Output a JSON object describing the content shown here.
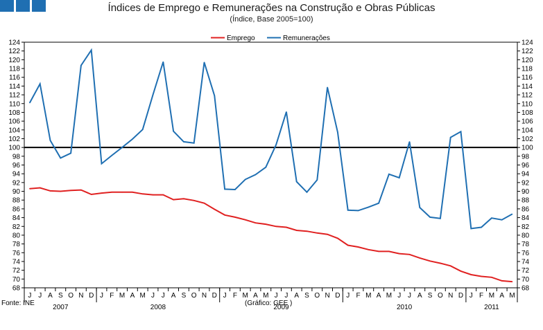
{
  "logo": {
    "color": "#1f6fb2"
  },
  "header": {
    "title": "Índices de Emprego e Remunerações na Construção e Obras Públicas",
    "subtitle": "(Índice, Base 2005=100)"
  },
  "footer": {
    "source": "Fonte: INE",
    "credit": "(Gráfico: GEE )"
  },
  "chart_data": {
    "type": "line",
    "title": "Índices de Emprego e Remunerações na Construção e Obras Públicas",
    "subtitle": "(Índice, Base 2005=100)",
    "ylim": [
      68,
      124
    ],
    "ytick_step": 2,
    "reference_line": 100,
    "grid": false,
    "legend_position": "top-center",
    "months": [
      "J",
      "J",
      "A",
      "S",
      "O",
      "N",
      "D",
      "J",
      "F",
      "M",
      "A",
      "M",
      "J",
      "J",
      "A",
      "S",
      "O",
      "N",
      "D",
      "J",
      "F",
      "M",
      "A",
      "M",
      "J",
      "J",
      "A",
      "S",
      "O",
      "N",
      "D",
      "J",
      "F",
      "M",
      "A",
      "M",
      "J",
      "J",
      "A",
      "S",
      "O",
      "N",
      "D",
      "J",
      "F",
      "M",
      "A",
      "M"
    ],
    "years": [
      {
        "label": "2007",
        "start": 0,
        "count": 7
      },
      {
        "label": "2008",
        "start": 7,
        "count": 12
      },
      {
        "label": "2009",
        "start": 19,
        "count": 12
      },
      {
        "label": "2010",
        "start": 31,
        "count": 12
      },
      {
        "label": "2011",
        "start": 43,
        "count": 5
      }
    ],
    "series": [
      {
        "name": "Emprego",
        "color": "#e02020",
        "values": [
          90.6,
          90.8,
          90.1,
          90.0,
          90.2,
          90.3,
          89.3,
          89.6,
          89.8,
          89.8,
          89.8,
          89.4,
          89.2,
          89.2,
          88.1,
          88.3,
          87.9,
          87.3,
          85.9,
          84.6,
          84.1,
          83.5,
          82.8,
          82.5,
          82.0,
          81.8,
          81.1,
          80.9,
          80.5,
          80.2,
          79.3,
          77.7,
          77.3,
          76.7,
          76.3,
          76.3,
          75.8,
          75.6,
          74.8,
          74.1,
          73.6,
          73.0,
          71.8,
          71.0,
          70.6,
          70.4,
          69.6,
          69.4
        ]
      },
      {
        "name": "Remunerações",
        "color": "#1f6fb2",
        "values": [
          110.2,
          114.5,
          101.6,
          97.6,
          98.7,
          118.7,
          122.2,
          96.3,
          98.2,
          100.0,
          101.9,
          104.1,
          112.0,
          119.5,
          103.7,
          101.3,
          101.0,
          119.4,
          111.8,
          90.5,
          90.4,
          92.7,
          93.8,
          95.5,
          100.6,
          108.1,
          92.2,
          89.8,
          92.6,
          113.7,
          103.5,
          85.7,
          85.6,
          86.4,
          87.3,
          93.9,
          93.1,
          101.3,
          86.3,
          84.1,
          83.8,
          102.3,
          103.6,
          81.5,
          81.8,
          83.9,
          83.5,
          84.8
        ]
      }
    ]
  }
}
